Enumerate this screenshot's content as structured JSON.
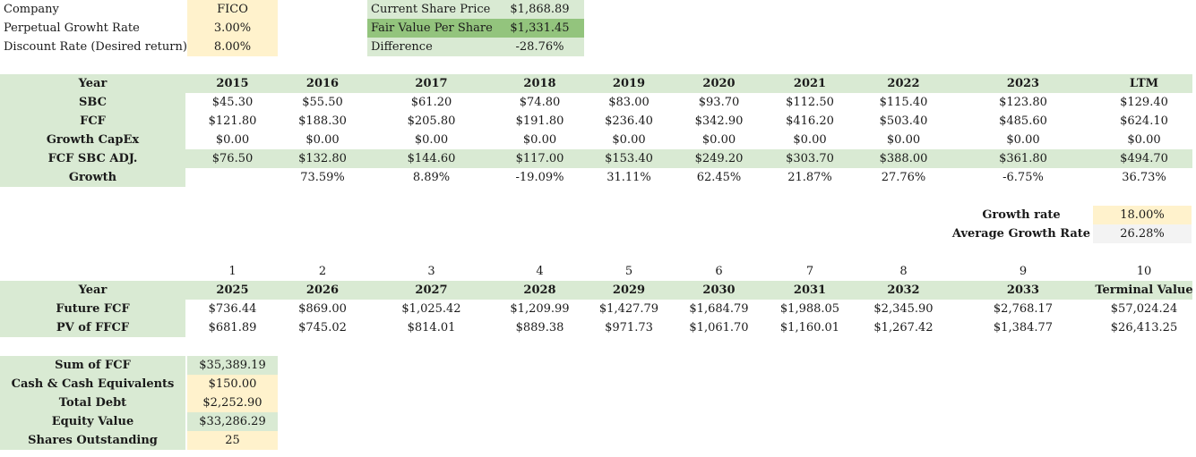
{
  "top": {
    "company_label": "Company",
    "company_value": "FICO",
    "perpetual_label": "Perpetual Growht Rate",
    "perpetual_value": "3.00%",
    "discount_label": "Discount Rate (Desired return)",
    "discount_value": "8.00%",
    "price_label": "Current Share Price",
    "price_value": "$1,868.89",
    "fair_label": "Fair Value Per Share",
    "fair_value": "$1,331.45",
    "diff_label": "Difference",
    "diff_value": "-28.76%"
  },
  "history": {
    "year_label": "Year",
    "years": [
      "2015",
      "2016",
      "2017",
      "2018",
      "2019",
      "2020",
      "2021",
      "2022",
      "2023",
      "LTM"
    ],
    "rows": [
      {
        "label": "SBC",
        "values": [
          "$45.30",
          "$55.50",
          "$61.20",
          "$74.80",
          "$83.00",
          "$93.70",
          "$112.50",
          "$115.40",
          "$123.80",
          "$129.40"
        ]
      },
      {
        "label": "FCF",
        "values": [
          "$121.80",
          "$188.30",
          "$205.80",
          "$191.80",
          "$236.40",
          "$342.90",
          "$416.20",
          "$503.40",
          "$485.60",
          "$624.10"
        ]
      },
      {
        "label": "Growth CapEx",
        "values": [
          "$0.00",
          "$0.00",
          "$0.00",
          "$0.00",
          "$0.00",
          "$0.00",
          "$0.00",
          "$0.00",
          "$0.00",
          "$0.00"
        ]
      },
      {
        "label": "FCF SBC ADJ.",
        "values": [
          "$76.50",
          "$132.80",
          "$144.60",
          "$117.00",
          "$153.40",
          "$249.20",
          "$303.70",
          "$388.00",
          "$361.80",
          "$494.70"
        ]
      },
      {
        "label": "Growth",
        "values": [
          "",
          "73.59%",
          "8.89%",
          "-19.09%",
          "31.11%",
          "62.45%",
          "21.87%",
          "27.76%",
          "-6.75%",
          "36.73%"
        ]
      }
    ]
  },
  "rates": {
    "growth_label": "Growth rate",
    "growth_value": "18.00%",
    "avg_label": "Average Growth Rate",
    "avg_value": "26.28%"
  },
  "projection": {
    "periods": [
      "1",
      "2",
      "3",
      "4",
      "5",
      "6",
      "7",
      "8",
      "9",
      "10"
    ],
    "year_label": "Year",
    "years": [
      "2025",
      "2026",
      "2027",
      "2028",
      "2029",
      "2030",
      "2031",
      "2032",
      "2033",
      "Terminal Value"
    ],
    "rows": [
      {
        "label": "Future FCF",
        "values": [
          "$736.44",
          "$869.00",
          "$1,025.42",
          "$1,209.99",
          "$1,427.79",
          "$1,684.79",
          "$1,988.05",
          "$2,345.90",
          "$2,768.17",
          "$57,024.24"
        ]
      },
      {
        "label": "PV of FFCF",
        "values": [
          "$681.89",
          "$745.02",
          "$814.01",
          "$889.38",
          "$971.73",
          "$1,061.70",
          "$1,160.01",
          "$1,267.42",
          "$1,384.77",
          "$26,413.25"
        ]
      }
    ]
  },
  "summary": [
    {
      "label": "Sum of FCF",
      "value": "$35,389.19"
    },
    {
      "label": "Cash & Cash Equivalents",
      "value": "$150.00"
    },
    {
      "label": "Total Debt",
      "value": "$2,252.90"
    },
    {
      "label": "Equity Value",
      "value": "$33,286.29"
    },
    {
      "label": "Shares Outstanding",
      "value": "25"
    }
  ]
}
